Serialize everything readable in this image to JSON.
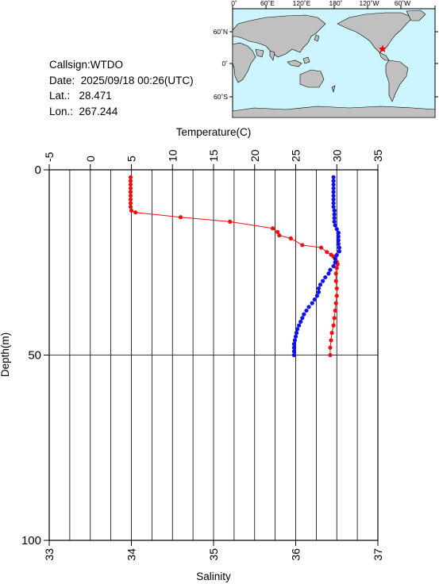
{
  "info": {
    "callsign": "Callsign:WTDO",
    "date": "Date:  2025/09/18 00:26(UTC)",
    "lat": "Lat.:   28.471",
    "lon": "Lon.:  267.244"
  },
  "map": {
    "lon_labels": [
      "0˚",
      "60˚E",
      "120˚E",
      "180˚",
      "120˚W",
      "60˚W"
    ],
    "lat_labels": [
      "60˚N",
      "0˚",
      "60˚S"
    ],
    "ocean_color": "#ccf5ff",
    "land_color": "#c0c0c0",
    "marker_color": "#ff0000",
    "marker_icon": "star-icon"
  },
  "chart_data": {
    "type": "scatter",
    "title": "",
    "top_axis": {
      "label": "Temperature(C)",
      "range": [
        -5,
        35
      ],
      "ticks": [
        "-5",
        "0",
        "5",
        "10",
        "15",
        "20",
        "25",
        "30",
        "35"
      ]
    },
    "bottom_axis": {
      "label": "Salinity",
      "range": [
        33,
        37
      ],
      "ticks": [
        "33",
        "34",
        "35",
        "36",
        "37"
      ]
    },
    "y_axis": {
      "label": "Depth(m)",
      "range": [
        0,
        100
      ],
      "inverted": true,
      "ticks": [
        "0",
        "50",
        "100"
      ]
    },
    "grid": true,
    "series": [
      {
        "quantity": "temperature",
        "axis": "top",
        "color": "#ee1111",
        "line": true,
        "points": [
          [
            4.9,
            2
          ],
          [
            4.9,
            3
          ],
          [
            4.9,
            4
          ],
          [
            4.9,
            5
          ],
          [
            4.9,
            6
          ],
          [
            4.9,
            7
          ],
          [
            4.9,
            8
          ],
          [
            4.9,
            9
          ],
          [
            4.9,
            10
          ],
          [
            5.0,
            11
          ],
          [
            5.5,
            11.5
          ],
          [
            11,
            12.8
          ],
          [
            17,
            14
          ],
          [
            22.2,
            15.8
          ],
          [
            22.8,
            16.8
          ],
          [
            23,
            17.7
          ],
          [
            24.4,
            18.5
          ],
          [
            25.8,
            20.3
          ],
          [
            28.1,
            21
          ],
          [
            28.8,
            22.2
          ],
          [
            29.3,
            22.9
          ],
          [
            29.6,
            23.4
          ],
          [
            29.8,
            24
          ],
          [
            30.0,
            24.8
          ],
          [
            30.1,
            25.5
          ],
          [
            30.0,
            26.5
          ],
          [
            29.9,
            28
          ],
          [
            29.9,
            30
          ],
          [
            30.0,
            32
          ],
          [
            30.0,
            34
          ],
          [
            29.9,
            36
          ],
          [
            29.8,
            38
          ],
          [
            29.7,
            40
          ],
          [
            29.6,
            42
          ],
          [
            29.4,
            44
          ],
          [
            29.3,
            46
          ],
          [
            29.2,
            48
          ],
          [
            29.2,
            50
          ]
        ]
      },
      {
        "quantity": "salinity",
        "axis": "bottom",
        "color": "#1111ee",
        "line": false,
        "points": [
          [
            36.46,
            2
          ],
          [
            36.46,
            3
          ],
          [
            36.46,
            4
          ],
          [
            36.46,
            5
          ],
          [
            36.46,
            6
          ],
          [
            36.46,
            7
          ],
          [
            36.46,
            8
          ],
          [
            36.46,
            9
          ],
          [
            36.46,
            10
          ],
          [
            36.47,
            11
          ],
          [
            36.47,
            12
          ],
          [
            36.47,
            13
          ],
          [
            36.47,
            14
          ],
          [
            36.48,
            15
          ],
          [
            36.5,
            16
          ],
          [
            36.52,
            17
          ],
          [
            36.52,
            18
          ],
          [
            36.52,
            19
          ],
          [
            36.52,
            20
          ],
          [
            36.53,
            21
          ],
          [
            36.53,
            22
          ],
          [
            36.5,
            23
          ],
          [
            36.48,
            24
          ],
          [
            36.48,
            25
          ],
          [
            36.46,
            26
          ],
          [
            36.42,
            27
          ],
          [
            36.4,
            28
          ],
          [
            36.36,
            29
          ],
          [
            36.33,
            30
          ],
          [
            36.3,
            31
          ],
          [
            36.28,
            32
          ],
          [
            36.28,
            33
          ],
          [
            36.26,
            34
          ],
          [
            36.23,
            35
          ],
          [
            36.2,
            36
          ],
          [
            36.16,
            37
          ],
          [
            36.13,
            38
          ],
          [
            36.1,
            39
          ],
          [
            36.08,
            40
          ],
          [
            36.06,
            41
          ],
          [
            36.04,
            42
          ],
          [
            36.02,
            43
          ],
          [
            36.01,
            44
          ],
          [
            36.0,
            45
          ],
          [
            35.99,
            46
          ],
          [
            35.98,
            47
          ],
          [
            35.98,
            48
          ],
          [
            35.98,
            49
          ],
          [
            35.98,
            50
          ]
        ]
      }
    ]
  }
}
